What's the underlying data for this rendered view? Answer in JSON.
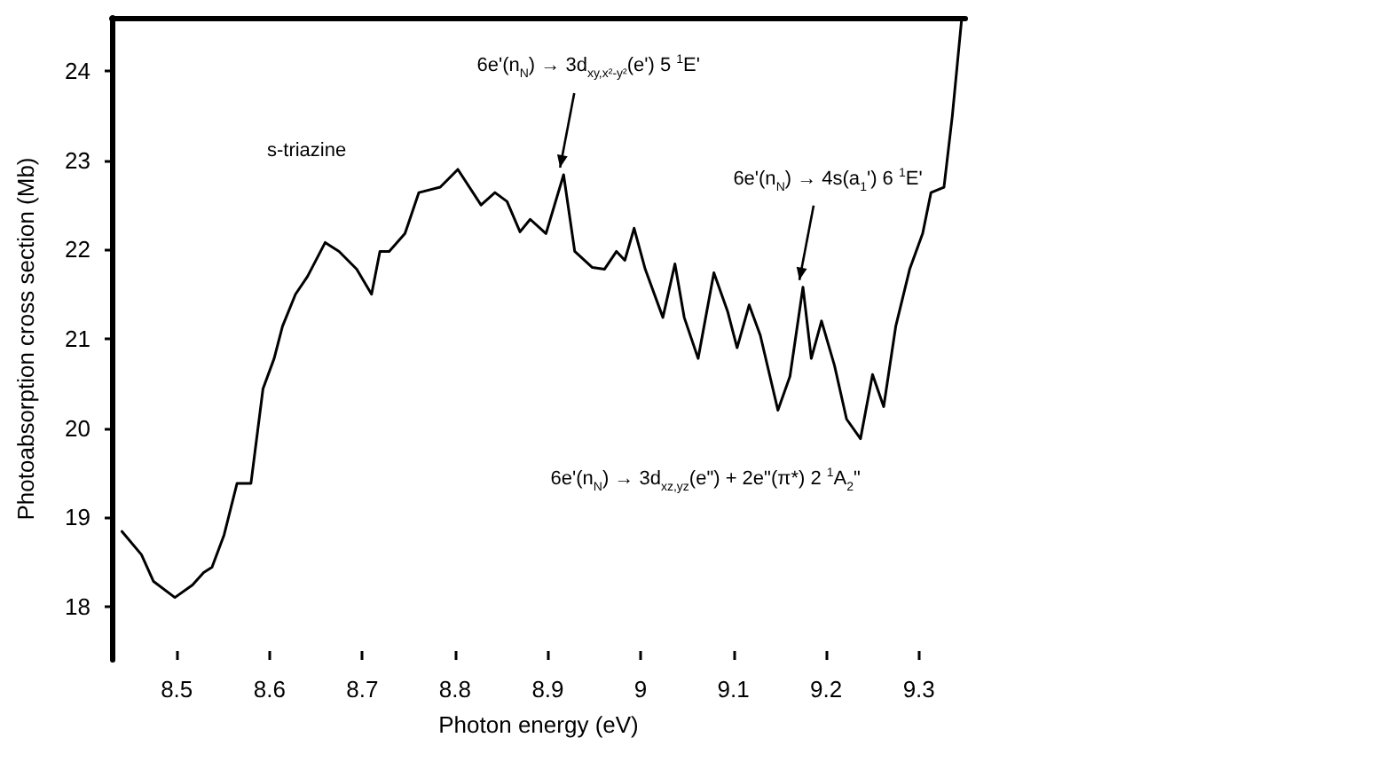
{
  "chart_data": {
    "type": "line",
    "xlabel": "Photon energy (eV)",
    "ylabel": "Photoabsorption cross section (Mb)",
    "xlim": [
      8.43,
      9.35
    ],
    "ylim": [
      17.4,
      24.6
    ],
    "xticks": [
      8.5,
      8.6,
      8.7,
      8.8,
      8.9,
      9.0,
      9.1,
      9.2,
      9.3
    ],
    "yticks": [
      18,
      19,
      20,
      21,
      22,
      23,
      24
    ],
    "grid": false,
    "marker": "none",
    "line_style": "solid",
    "series": [
      {
        "color": "#000000",
        "x": [
          8.441,
          8.462,
          8.475,
          8.498,
          8.517,
          8.529,
          8.538,
          8.551,
          8.565,
          8.58,
          8.593,
          8.605,
          8.614,
          8.628,
          8.641,
          8.66,
          8.675,
          8.694,
          8.71,
          8.719,
          8.729,
          8.746,
          8.761,
          8.784,
          8.803,
          8.828,
          8.843,
          8.856,
          8.87,
          8.881,
          8.898,
          8.917,
          8.929,
          8.948,
          8.961,
          8.974,
          8.983,
          8.993,
          9.005,
          9.024,
          9.037,
          9.047,
          9.062,
          9.079,
          9.094,
          9.104,
          9.117,
          9.129,
          9.148,
          9.161,
          9.175,
          9.184,
          9.195,
          9.209,
          9.222,
          9.237,
          9.25,
          9.262,
          9.275,
          9.29,
          9.304,
          9.313,
          9.327,
          9.336,
          9.346
        ],
        "values": [
          18.84,
          18.58,
          18.28,
          18.1,
          18.24,
          18.38,
          18.44,
          18.8,
          19.38,
          19.38,
          20.44,
          20.78,
          21.14,
          21.5,
          21.7,
          22.08,
          21.98,
          21.78,
          21.5,
          21.98,
          21.98,
          22.18,
          22.64,
          22.7,
          22.9,
          22.5,
          22.64,
          22.54,
          22.2,
          22.34,
          22.18,
          22.84,
          21.98,
          21.8,
          21.78,
          21.98,
          21.88,
          22.24,
          21.78,
          21.24,
          21.84,
          21.24,
          20.78,
          21.74,
          21.3,
          20.9,
          21.38,
          21.04,
          20.2,
          20.58,
          21.58,
          20.78,
          21.2,
          20.7,
          20.1,
          19.88,
          20.6,
          20.24,
          21.14,
          21.78,
          22.18,
          22.64,
          22.7,
          23.5,
          24.58
        ]
      }
    ],
    "annotations": [
      "s-triazine",
      {
        "text": "6e'(n$_{N}$) → 3d$_{xy,x²-y²}$(e') 5 $^{1}$E'",
        "x": 8.917,
        "y": 22.84
      },
      {
        "text": "6e'(n$_{N}$) → 4s(a$_{1}$') 6 $^{1}$E'",
        "x": 9.175,
        "y": 21.58
      },
      "6e'(n$_{N}$) → 3d$_{xz,yz}$(e\") + 2e\"(π*) 2 $^{1}$A$_{2}$\""
    ]
  }
}
